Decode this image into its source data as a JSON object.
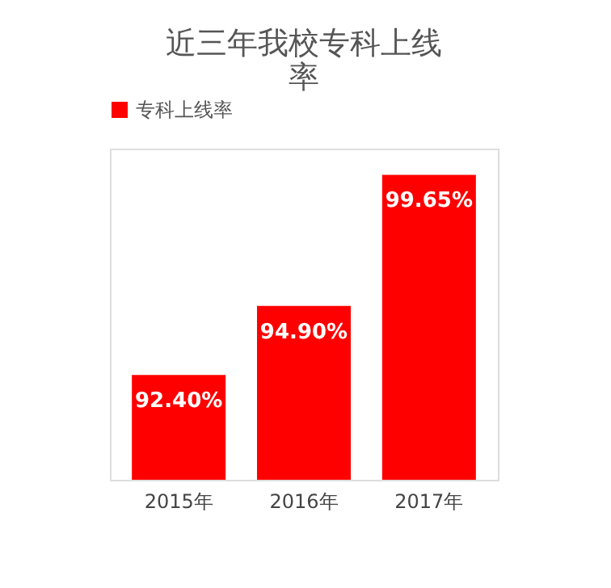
{
  "chart_data": {
    "type": "bar",
    "title": "近三年我校专科上线率",
    "categories": [
      "2015年",
      "2016年",
      "2017年"
    ],
    "series": [
      {
        "name": "专科上线率",
        "color": "#ff0000",
        "values": [
          92.4,
          94.9,
          99.65
        ],
        "value_labels": [
          "92.40%",
          "94.90%",
          "99.65%"
        ]
      }
    ],
    "ylim": [
      88.6,
      100.6
    ],
    "tick_labels": "x",
    "legend": "top",
    "grid": false
  }
}
